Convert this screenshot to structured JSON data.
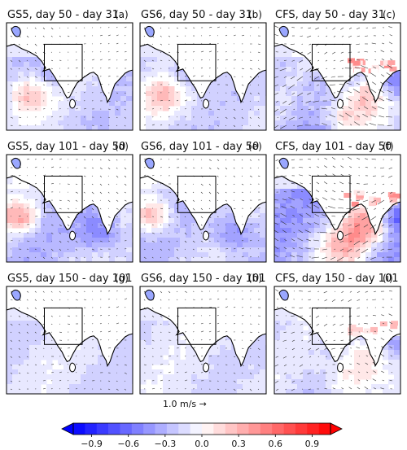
{
  "chart_data": {
    "type": "heatmap",
    "panels": [
      {
        "title": "GS5, day 50 - day 31",
        "label": "(a)",
        "model": "GS5",
        "intensity": 0.55,
        "arrows": "weak"
      },
      {
        "title": "GS6, day 50 - day 31",
        "label": "(b)",
        "model": "GS6",
        "intensity": 0.5,
        "arrows": "weak"
      },
      {
        "title": "CFS, day 50 - day 31",
        "label": "(c)",
        "model": "CFS",
        "intensity": 0.95,
        "arrows": "strong"
      },
      {
        "title": "GS5, day 101 - day 50",
        "label": "(d)",
        "model": "GS5",
        "intensity": 0.7,
        "arrows": "weak"
      },
      {
        "title": "GS6, day 101 - day 50",
        "label": "(e)",
        "model": "GS6",
        "intensity": 0.65,
        "arrows": "weak"
      },
      {
        "title": "CFS, day 101 - day 50",
        "label": "(f)",
        "model": "CFS",
        "intensity": 1.0,
        "arrows": "strong"
      },
      {
        "title": "GS5, day 150 - day 101",
        "label": "(g)",
        "model": "GS5",
        "intensity": 0.45,
        "arrows": "weak"
      },
      {
        "title": "GS6, day 150 - day 101",
        "label": "(h)",
        "model": "GS6",
        "intensity": 0.4,
        "arrows": "weak"
      },
      {
        "title": "CFS, day 150 - day 101",
        "label": "(i)",
        "model": "CFS",
        "intensity": 0.6,
        "arrows": "medium"
      }
    ],
    "reference_vector": "1.0 m/s  →",
    "colorbar": {
      "min": -1.05,
      "max": 1.05,
      "levels": 22,
      "ticks": [
        "−0.9",
        "−0.6",
        "−0.3",
        "0.0",
        "0.3",
        "0.6",
        "0.9"
      ],
      "tick_values": [
        -0.9,
        -0.6,
        -0.3,
        0.0,
        0.3,
        0.6,
        0.9
      ],
      "colors": {
        "negative": "#0000ff",
        "neutral": "#ffffff",
        "positive": "#ff0000"
      },
      "extend": "both"
    }
  }
}
